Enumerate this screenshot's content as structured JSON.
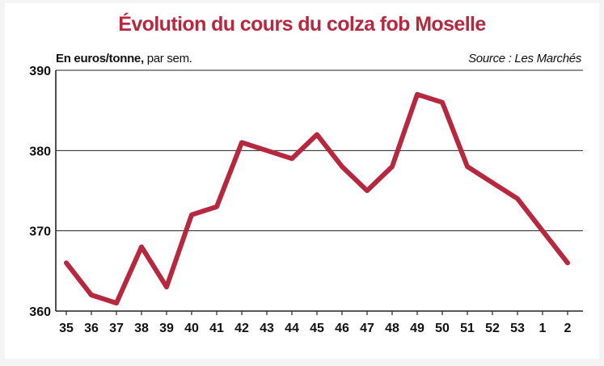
{
  "colors": {
    "accent": "#b5283f",
    "grid": "#222222",
    "axis_text": "#111111"
  },
  "header": {
    "title": "Évolution du cours du colza fob Moselle",
    "unit_bold": "En euros/tonne,",
    "unit_rest": " par sem.",
    "source": "Source : Les Marchés"
  },
  "chart_data": {
    "type": "line",
    "title": "Évolution du cours du colza fob Moselle",
    "xlabel": "",
    "ylabel": "",
    "categories": [
      "35",
      "36",
      "37",
      "38",
      "39",
      "40",
      "41",
      "42",
      "43",
      "44",
      "45",
      "46",
      "47",
      "48",
      "49",
      "50",
      "51",
      "52",
      "53",
      "1",
      "2"
    ],
    "values": [
      366,
      362,
      361,
      368,
      363,
      372,
      373,
      381,
      380,
      379,
      382,
      378,
      375,
      378,
      387,
      386,
      378,
      376,
      374,
      370,
      366
    ],
    "ylim": [
      360,
      390
    ],
    "yticks": [
      360,
      370,
      380,
      390
    ],
    "grid": true
  }
}
